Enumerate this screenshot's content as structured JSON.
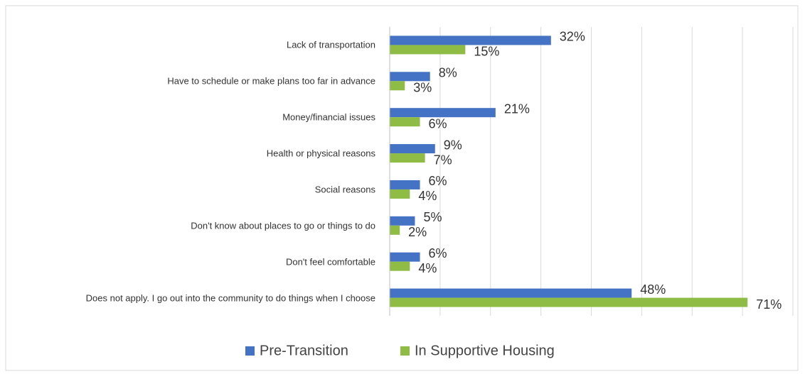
{
  "chart_data": {
    "type": "bar",
    "orientation": "horizontal",
    "categories": [
      "Lack of transportation",
      "Have to schedule or make plans too far in advance",
      "Money/financial issues",
      "Health or physical reasons",
      "Social reasons",
      "Don't know about places to go or things to do",
      "Don't feel comfortable",
      "Does not apply. I go out into the community to do things when I choose"
    ],
    "series": [
      {
        "name": "Pre-Transition",
        "color": "#4472c4",
        "values": [
          32,
          8,
          21,
          9,
          6,
          5,
          6,
          48
        ],
        "value_labels": [
          "32%",
          "8%",
          "21%",
          "9%",
          "6%",
          "5%",
          "6%",
          "48%"
        ]
      },
      {
        "name": "In Supportive Housing",
        "color": "#8fbc45",
        "values": [
          15,
          3,
          6,
          7,
          4,
          2,
          4,
          71
        ],
        "value_labels": [
          "15%",
          "3%",
          "6%",
          "7%",
          "4%",
          "2%",
          "4%",
          "71%"
        ]
      }
    ],
    "xlim": [
      0,
      80
    ],
    "xticks": [
      0,
      10,
      20,
      30,
      40,
      50,
      60,
      70,
      80
    ],
    "grid": true,
    "legend": "bottom"
  }
}
